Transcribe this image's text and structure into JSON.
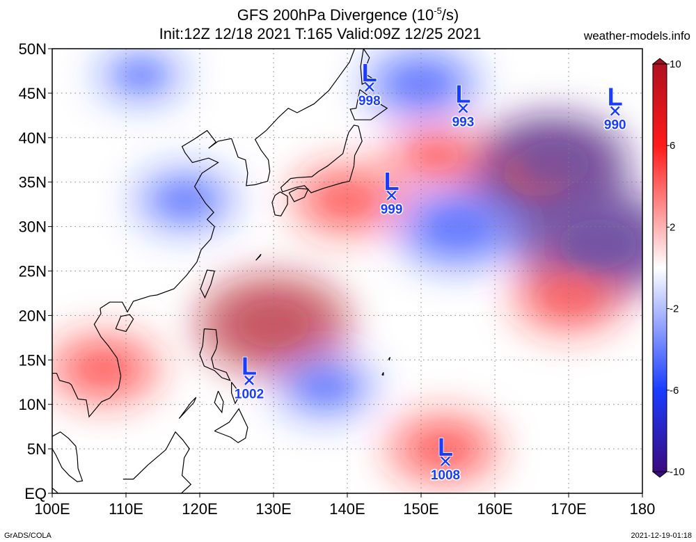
{
  "header": {
    "title_pre": "GFS 200hPa Divergence (10",
    "title_sup": "-5",
    "title_post": "/s)",
    "subtitle": "Init:12Z 12/18 2021 T:165 Valid:09Z 12/25 2021",
    "site": "weather-models.info"
  },
  "footer": {
    "left": "GrADS/COLA",
    "right": "2021-12-19-01:18"
  },
  "map": {
    "lon_range": [
      100,
      180
    ],
    "lat_range": [
      0,
      50
    ],
    "lon_ticks": [
      {
        "value": 100,
        "label": "100E"
      },
      {
        "value": 110,
        "label": "110E"
      },
      {
        "value": 120,
        "label": "120E"
      },
      {
        "value": 130,
        "label": "130E"
      },
      {
        "value": 140,
        "label": "140E"
      },
      {
        "value": 150,
        "label": "150E"
      },
      {
        "value": 160,
        "label": "160E"
      },
      {
        "value": 170,
        "label": "170E"
      },
      {
        "value": 180,
        "label": "180"
      }
    ],
    "lat_ticks": [
      {
        "value": 0,
        "label": "EQ"
      },
      {
        "value": 5,
        "label": "5N"
      },
      {
        "value": 10,
        "label": "10N"
      },
      {
        "value": 15,
        "label": "15N"
      },
      {
        "value": 20,
        "label": "20N"
      },
      {
        "value": 25,
        "label": "25N"
      },
      {
        "value": 30,
        "label": "30N"
      },
      {
        "value": 35,
        "label": "35N"
      },
      {
        "value": 40,
        "label": "40N"
      },
      {
        "value": 45,
        "label": "45N"
      },
      {
        "value": 50,
        "label": "50N"
      }
    ],
    "grid": true
  },
  "colorbar": {
    "range": [
      -10,
      10
    ],
    "labels": [
      {
        "value": 10,
        "label": "10"
      },
      {
        "value": 6,
        "label": "6"
      },
      {
        "value": 2,
        "label": "2"
      },
      {
        "value": -2,
        "label": "-2"
      },
      {
        "value": -6,
        "label": "-6"
      },
      {
        "value": -10,
        "label": "-10"
      }
    ],
    "colors": {
      "max": "#b01020",
      "high": "#ff1a1a",
      "mid": "#ffffff",
      "low": "#1a3cff",
      "min": "#3a0a80"
    }
  },
  "lows": [
    {
      "label": "L",
      "pressure": "998",
      "lon": 143.0,
      "lat": 45.7
    },
    {
      "label": "L",
      "pressure": "993",
      "lon": 155.7,
      "lat": 43.3
    },
    {
      "label": "L",
      "pressure": "990",
      "lon": 176.3,
      "lat": 43.0
    },
    {
      "label": "L",
      "pressure": "999",
      "lon": 146.0,
      "lat": 33.5
    },
    {
      "label": "L",
      "pressure": "1002",
      "lon": 126.7,
      "lat": 12.7
    },
    {
      "label": "L",
      "pressure": "1008",
      "lon": 153.3,
      "lat": 3.6
    }
  ],
  "divergence_features": [
    {
      "lon": 130,
      "lat": 19,
      "value": 8
    },
    {
      "lon": 166,
      "lat": 36,
      "value": 8
    },
    {
      "lon": 174,
      "lat": 28,
      "value": -9
    },
    {
      "lon": 168,
      "lat": 37,
      "value": -8
    },
    {
      "lon": 150,
      "lat": 46,
      "value": -5
    },
    {
      "lon": 155,
      "lat": 30,
      "value": -6
    },
    {
      "lon": 152,
      "lat": 38,
      "value": 4
    },
    {
      "lon": 140,
      "lat": 33,
      "value": 5
    },
    {
      "lon": 107,
      "lat": 14,
      "value": 5
    },
    {
      "lon": 170,
      "lat": 22,
      "value": 5
    },
    {
      "lon": 153,
      "lat": 5,
      "value": 5
    },
    {
      "lon": 137,
      "lat": 12,
      "value": -4
    },
    {
      "lon": 118,
      "lat": 33,
      "value": -4
    },
    {
      "lon": 112,
      "lat": 47,
      "value": -3
    }
  ],
  "coastlines": [
    [
      [
        106.5,
        20.8
      ],
      [
        107.8,
        21.5
      ],
      [
        109.5,
        21.5
      ],
      [
        110.2,
        20.4
      ],
      [
        111.0,
        21.6
      ],
      [
        113.3,
        22.2
      ],
      [
        114.2,
        22.3
      ],
      [
        116.5,
        23.0
      ],
      [
        118.2,
        24.5
      ],
      [
        119.6,
        26.0
      ],
      [
        120.2,
        27.4
      ],
      [
        121.5,
        28.6
      ],
      [
        122.0,
        30.0
      ],
      [
        121.0,
        30.8
      ],
      [
        121.9,
        31.6
      ],
      [
        120.8,
        32.6
      ],
      [
        119.3,
        34.5
      ],
      [
        120.3,
        36.0
      ],
      [
        122.5,
        37.2
      ],
      [
        121.2,
        37.7
      ],
      [
        119.0,
        37.2
      ],
      [
        118.0,
        38.3
      ],
      [
        117.6,
        39.0
      ],
      [
        119.2,
        39.8
      ],
      [
        121.0,
        40.8
      ],
      [
        122.2,
        39.5
      ],
      [
        121.2,
        38.8
      ],
      [
        122.5,
        39.6
      ],
      [
        124.3,
        39.9
      ]
    ],
    [
      [
        124.3,
        39.9
      ],
      [
        125.2,
        37.8
      ],
      [
        126.2,
        37.5
      ],
      [
        126.5,
        36.0
      ],
      [
        126.3,
        34.6
      ],
      [
        127.5,
        34.7
      ],
      [
        129.2,
        35.1
      ],
      [
        129.5,
        36.2
      ],
      [
        129.3,
        37.5
      ],
      [
        128.3,
        38.6
      ],
      [
        127.5,
        39.8
      ],
      [
        129.0,
        40.8
      ],
      [
        129.8,
        41.5
      ],
      [
        130.7,
        42.3
      ]
    ],
    [
      [
        130.7,
        42.3
      ],
      [
        132.0,
        43.3
      ],
      [
        133.2,
        42.8
      ],
      [
        135.5,
        43.8
      ],
      [
        137.5,
        45.3
      ],
      [
        139.0,
        47.0
      ],
      [
        140.3,
        48.5
      ],
      [
        141.0,
        50.0
      ]
    ],
    [
      [
        142.2,
        50.0
      ],
      [
        143.0,
        49.0
      ],
      [
        142.2,
        47.3
      ],
      [
        143.5,
        46.6
      ],
      [
        142.0,
        46.0
      ],
      [
        141.8,
        48.0
      ],
      [
        142.2,
        50.0
      ]
    ],
    [
      [
        141.7,
        45.4
      ],
      [
        141.2,
        43.3
      ],
      [
        140.4,
        43.2
      ],
      [
        141.0,
        42.0
      ],
      [
        143.2,
        42.0
      ],
      [
        145.4,
        43.3
      ],
      [
        144.0,
        44.0
      ],
      [
        141.7,
        45.4
      ]
    ],
    [
      [
        141.5,
        41.3
      ],
      [
        142.0,
        39.6
      ],
      [
        141.0,
        38.0
      ],
      [
        140.9,
        36.8
      ],
      [
        140.3,
        35.1
      ],
      [
        139.2,
        34.9
      ],
      [
        138.0,
        34.6
      ],
      [
        136.8,
        34.3
      ],
      [
        135.1,
        33.8
      ],
      [
        134.2,
        34.6
      ],
      [
        133.0,
        34.4
      ],
      [
        131.2,
        33.9
      ],
      [
        131.0,
        34.4
      ],
      [
        132.3,
        35.4
      ],
      [
        133.2,
        35.5
      ],
      [
        135.2,
        35.6
      ],
      [
        136.1,
        36.2
      ],
      [
        137.3,
        36.8
      ],
      [
        139.4,
        38.2
      ],
      [
        139.9,
        39.8
      ],
      [
        140.2,
        40.6
      ],
      [
        140.9,
        41.4
      ],
      [
        141.5,
        41.3
      ]
    ],
    [
      [
        130.9,
        33.9
      ],
      [
        130.2,
        33.5
      ],
      [
        129.8,
        32.7
      ],
      [
        130.2,
        31.3
      ],
      [
        131.0,
        31.2
      ],
      [
        131.9,
        32.5
      ],
      [
        131.9,
        33.4
      ],
      [
        130.9,
        33.9
      ]
    ],
    [
      [
        132.1,
        33.8
      ],
      [
        132.8,
        32.8
      ],
      [
        134.2,
        33.3
      ],
      [
        134.7,
        34.2
      ],
      [
        133.3,
        34.3
      ],
      [
        132.1,
        33.8
      ]
    ],
    [
      [
        120.1,
        23.0
      ],
      [
        120.7,
        22.0
      ],
      [
        121.5,
        23.5
      ],
      [
        122.0,
        25.0
      ],
      [
        121.0,
        25.1
      ],
      [
        120.1,
        23.0
      ]
    ],
    [
      [
        108.6,
        18.5
      ],
      [
        110.0,
        18.2
      ],
      [
        111.0,
        19.6
      ],
      [
        110.5,
        20.1
      ],
      [
        109.3,
        19.9
      ],
      [
        108.6,
        18.5
      ]
    ],
    [
      [
        120.6,
        18.5
      ],
      [
        122.2,
        18.4
      ],
      [
        122.4,
        17.0
      ],
      [
        122.2,
        16.2
      ],
      [
        121.6,
        15.2
      ],
      [
        121.9,
        14.1
      ],
      [
        123.6,
        13.6
      ],
      [
        124.1,
        12.7
      ],
      [
        123.0,
        13.0
      ],
      [
        122.0,
        13.8
      ],
      [
        120.6,
        14.3
      ],
      [
        120.0,
        15.6
      ],
      [
        120.4,
        16.6
      ],
      [
        120.6,
        18.5
      ]
    ],
    [
      [
        122.5,
        11.5
      ],
      [
        123.2,
        10.3
      ],
      [
        123.0,
        9.1
      ],
      [
        122.0,
        10.2
      ],
      [
        122.5,
        11.5
      ]
    ],
    [
      [
        124.3,
        12.5
      ],
      [
        125.5,
        11.2
      ],
      [
        124.8,
        10.1
      ],
      [
        124.3,
        11.3
      ],
      [
        124.3,
        12.5
      ]
    ],
    [
      [
        122.0,
        7.0
      ],
      [
        124.0,
        8.0
      ],
      [
        125.3,
        9.5
      ],
      [
        126.5,
        7.4
      ],
      [
        126.2,
        6.2
      ],
      [
        125.2,
        5.7
      ],
      [
        124.2,
        6.3
      ],
      [
        122.0,
        7.0
      ]
    ],
    [
      [
        117.2,
        8.4
      ],
      [
        119.2,
        10.2
      ],
      [
        119.5,
        10.8
      ],
      [
        118.8,
        10.2
      ],
      [
        117.2,
        8.4
      ]
    ],
    [
      [
        109.0,
        11.8
      ],
      [
        109.3,
        13.2
      ],
      [
        108.8,
        15.2
      ],
      [
        107.6,
        16.6
      ],
      [
        106.6,
        17.6
      ],
      [
        105.7,
        19.0
      ],
      [
        106.6,
        20.2
      ],
      [
        106.5,
        20.8
      ]
    ],
    [
      [
        109.0,
        11.8
      ],
      [
        107.8,
        10.7
      ],
      [
        106.7,
        10.3
      ],
      [
        105.0,
        8.6
      ],
      [
        104.8,
        9.6
      ],
      [
        104.6,
        10.5
      ],
      [
        103.5,
        10.6
      ],
      [
        102.6,
        12.2
      ],
      [
        102.3,
        12.4
      ],
      [
        101.0,
        12.7
      ],
      [
        100.6,
        13.5
      ]
    ],
    [
      [
        100.0,
        13.5
      ],
      [
        100.6,
        13.5
      ]
    ],
    [
      [
        100.0,
        6.4
      ],
      [
        101.1,
        6.9
      ],
      [
        102.2,
        6.2
      ],
      [
        103.2,
        5.3
      ],
      [
        103.4,
        4.2
      ],
      [
        103.5,
        2.8
      ],
      [
        104.1,
        1.4
      ],
      [
        103.4,
        1.3
      ],
      [
        102.3,
        2.0
      ],
      [
        101.3,
        2.9
      ],
      [
        100.5,
        4.3
      ],
      [
        100.0,
        5.0
      ]
    ],
    [
      [
        109.6,
        1.6
      ],
      [
        111.0,
        1.6
      ],
      [
        113.0,
        3.2
      ],
      [
        115.4,
        4.9
      ],
      [
        116.7,
        6.9
      ],
      [
        117.7,
        6.0
      ],
      [
        118.6,
        5.0
      ],
      [
        117.9,
        4.0
      ],
      [
        117.6,
        2.0
      ],
      [
        118.8,
        1.0
      ],
      [
        117.5,
        0.0
      ]
    ],
    [
      [
        100.0,
        0.6
      ],
      [
        100.8,
        0.0
      ]
    ],
    [
      [
        127.6,
        26.2
      ],
      [
        128.2,
        26.7
      ],
      [
        128.3,
        26.9
      ],
      [
        127.8,
        26.4
      ],
      [
        127.6,
        26.2
      ]
    ],
    [
      [
        144.7,
        13.3
      ],
      [
        144.9,
        13.6
      ],
      [
        144.9,
        13.3
      ],
      [
        144.7,
        13.3
      ]
    ],
    [
      [
        145.6,
        15.1
      ],
      [
        145.8,
        15.3
      ],
      [
        145.7,
        15.0
      ],
      [
        145.6,
        15.1
      ]
    ]
  ]
}
